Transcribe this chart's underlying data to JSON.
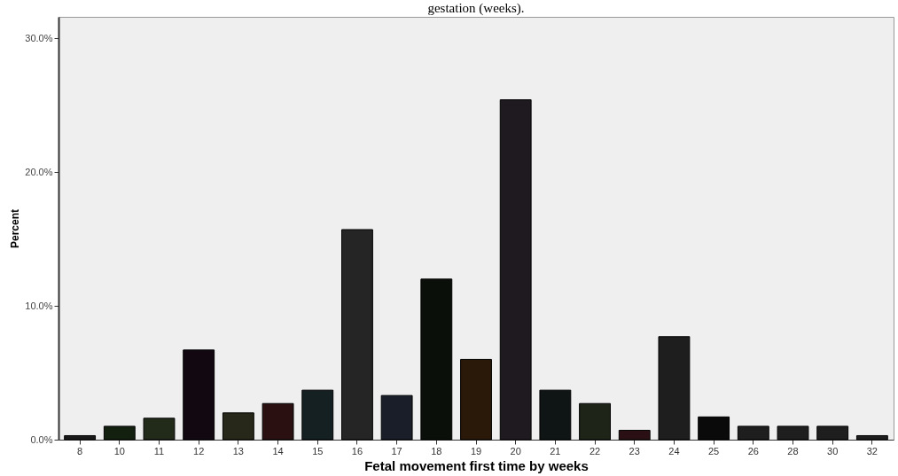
{
  "chart_data": {
    "type": "bar",
    "title": "gestation (weeks).",
    "xlabel": "Fetal movement first time by weeks",
    "ylabel": "Percent",
    "categories": [
      "8",
      "10",
      "11",
      "12",
      "13",
      "14",
      "15",
      "16",
      "17",
      "18",
      "19",
      "20",
      "21",
      "22",
      "23",
      "24",
      "25",
      "26",
      "28",
      "30",
      "32"
    ],
    "values": [
      0.3,
      1.0,
      1.6,
      6.7,
      2.0,
      2.7,
      3.7,
      15.7,
      3.3,
      12.0,
      6.0,
      25.4,
      3.7,
      2.7,
      0.7,
      7.7,
      1.7,
      1.0,
      1.0,
      1.0,
      0.3
    ],
    "colors": [
      "#1a1a1a",
      "#14200f",
      "#222a1a",
      "#120812",
      "#28281a",
      "#2a1010",
      "#142022",
      "#252525",
      "#1a1e28",
      "#0a0f0a",
      "#2a1808",
      "#1e1a20",
      "#0f1414",
      "#1e2418",
      "#2a0f14",
      "#1e1e1e",
      "#0a0a0a",
      "#1e1e1e",
      "#1e1e1e",
      "#1e1e1e",
      "#1e1e1e"
    ],
    "ylim": [
      0,
      31.6
    ],
    "yticks": [
      {
        "value": 0,
        "label": "0.0%"
      },
      {
        "value": 10,
        "label": "10.0%"
      },
      {
        "value": 20,
        "label": "20.0%"
      },
      {
        "value": 30,
        "label": "30.0%"
      }
    ],
    "grid": false
  }
}
